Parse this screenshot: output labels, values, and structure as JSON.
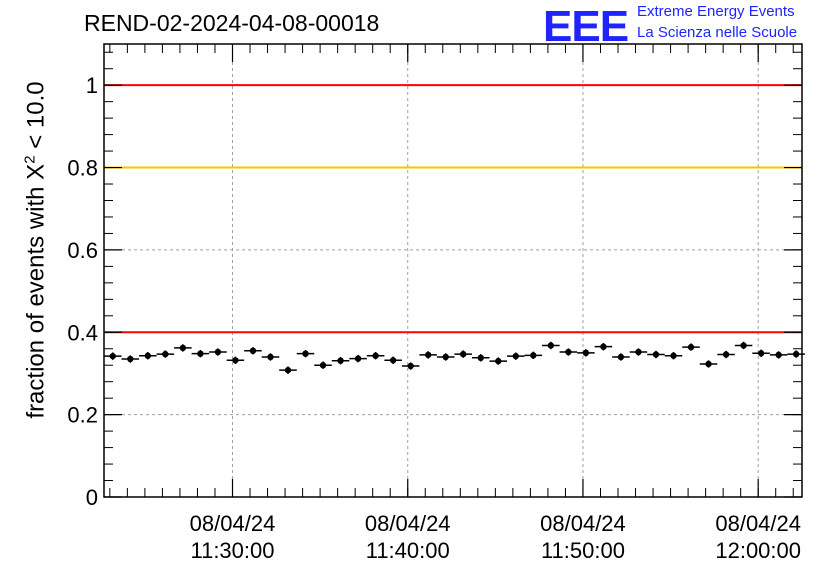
{
  "header": {
    "title": "REND-02-2024-04-08-00018",
    "logo_text": "EEE",
    "logo_line1": "Extreme Energy Events",
    "logo_line2": "La Scienza nelle Scuole"
  },
  "chart_data": {
    "type": "scatter",
    "ylabel_pre": "fraction of events with ",
    "ylabel_chi": "X",
    "ylabel_sup": "2",
    "ylabel_post": " < 10.0",
    "ylim": [
      0,
      1.1
    ],
    "yticks": [
      0,
      0.2,
      0.4,
      0.6,
      0.8,
      1
    ],
    "ytick_labels": [
      "0",
      "0.2",
      "0.4",
      "0.6",
      "0.8",
      "1"
    ],
    "xlim": [
      "2024-04-08 11:22:40",
      "2024-04-08 12:02:30"
    ],
    "xticks": [
      {
        "date": "08/04/24",
        "time": "11:30:00"
      },
      {
        "date": "08/04/24",
        "time": "11:40:00"
      },
      {
        "date": "08/04/24",
        "time": "11:50:00"
      },
      {
        "date": "08/04/24",
        "time": "12:00:00"
      }
    ],
    "grid": true,
    "reference_lines": [
      {
        "y": 1.0,
        "color": "#ff0000"
      },
      {
        "y": 0.8,
        "color": "#ffc000"
      },
      {
        "y": 0.4,
        "color": "#ff0000"
      }
    ],
    "series": [
      {
        "x": [
          "11:23:10",
          "11:24:10",
          "11:25:10",
          "11:26:10",
          "11:27:10",
          "11:28:10",
          "11:29:10",
          "11:30:10",
          "11:31:10",
          "11:32:10",
          "11:33:10",
          "11:34:10",
          "11:35:10",
          "11:36:10",
          "11:37:10",
          "11:38:10",
          "11:39:10",
          "11:40:10",
          "11:41:10",
          "11:42:10",
          "11:43:10",
          "11:44:10",
          "11:45:10",
          "11:46:10",
          "11:47:10",
          "11:48:10",
          "11:49:10",
          "11:50:10",
          "11:51:10",
          "11:52:10",
          "11:53:10",
          "11:54:10",
          "11:55:10",
          "11:56:10",
          "11:57:10",
          "11:58:10",
          "11:59:10",
          "12:00:10",
          "12:01:10",
          "12:02:10"
        ],
        "values": [
          0.342,
          0.335,
          0.343,
          0.347,
          0.362,
          0.348,
          0.352,
          0.332,
          0.355,
          0.34,
          0.308,
          0.348,
          0.32,
          0.331,
          0.336,
          0.343,
          0.332,
          0.318,
          0.345,
          0.34,
          0.347,
          0.338,
          0.33,
          0.342,
          0.344,
          0.368,
          0.352,
          0.35,
          0.365,
          0.34,
          0.352,
          0.346,
          0.343,
          0.364,
          0.323,
          0.346,
          0.368,
          0.349,
          0.345,
          0.347
        ],
        "errors": [
          0.009,
          0.009,
          0.009,
          0.009,
          0.009,
          0.009,
          0.009,
          0.009,
          0.009,
          0.009,
          0.009,
          0.009,
          0.009,
          0.009,
          0.009,
          0.009,
          0.009,
          0.009,
          0.009,
          0.009,
          0.009,
          0.009,
          0.009,
          0.009,
          0.009,
          0.009,
          0.009,
          0.009,
          0.009,
          0.009,
          0.009,
          0.009,
          0.009,
          0.009,
          0.009,
          0.009,
          0.009,
          0.009,
          0.009,
          0.009
        ],
        "color": "#000000"
      }
    ]
  }
}
